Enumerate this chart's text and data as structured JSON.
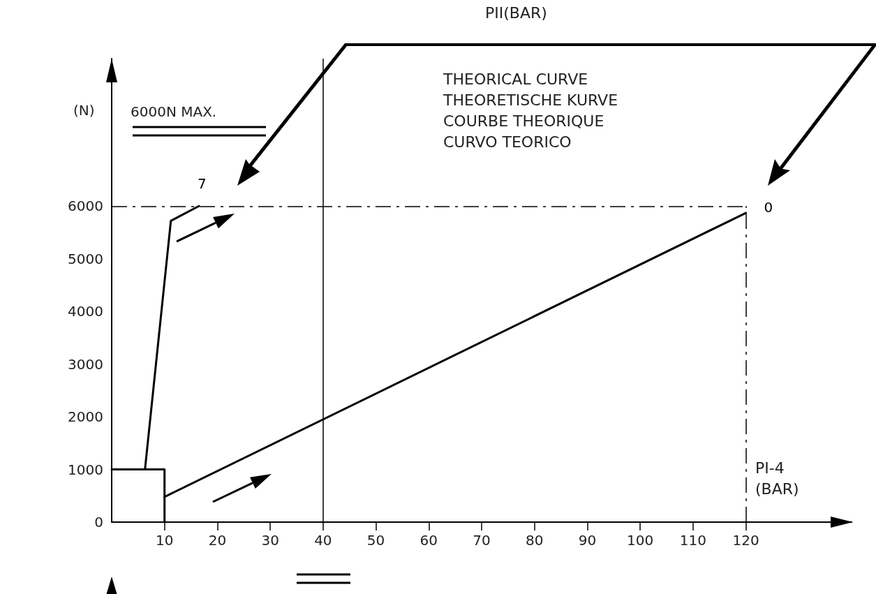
{
  "chart_data": {
    "type": "line",
    "title": "PII(BAR)",
    "xlabel": "PI-4\n(BAR)",
    "ylabel": "(N)",
    "annotations": [
      "6000N MAX.",
      "THEORICAL CURVE",
      "THEORETISCHE KURVE",
      "COURBE THEORIQUE",
      "CURVO TEORICO"
    ],
    "series": [
      {
        "name": "7",
        "color": "#000000",
        "x": [
          6.3,
          11.2,
          16.5
        ],
        "values": [
          1000,
          5720,
          6000
        ]
      },
      {
        "name": "0",
        "color": "#000000",
        "x": [
          10,
          120
        ],
        "values": [
          480,
          5870
        ]
      },
      {
        "color": "#000000",
        "x": [
          0,
          10,
          10
        ],
        "values": [
          1000,
          1000,
          0
        ]
      }
    ],
    "xlim": [
      0,
      140
    ],
    "xticks": [
      10,
      20,
      30,
      40,
      50,
      60,
      70,
      80,
      90,
      100,
      110,
      120
    ],
    "ylim": [
      0,
      8800
    ],
    "yticks": [
      0,
      1000,
      2000,
      3000,
      4000,
      5000,
      6000
    ],
    "ref_lines": [
      {
        "axis": "y",
        "value": 6000,
        "line_style": "dashed",
        "color": "#000000"
      },
      {
        "axis": "x",
        "value": 120,
        "line_style": "dashed",
        "color": "#000000"
      },
      {
        "axis": "x",
        "value": 40,
        "line_style": "solid",
        "color": "#000000"
      }
    ],
    "grid": false,
    "legend": false,
    "marker": "none",
    "line_style": "solid"
  }
}
